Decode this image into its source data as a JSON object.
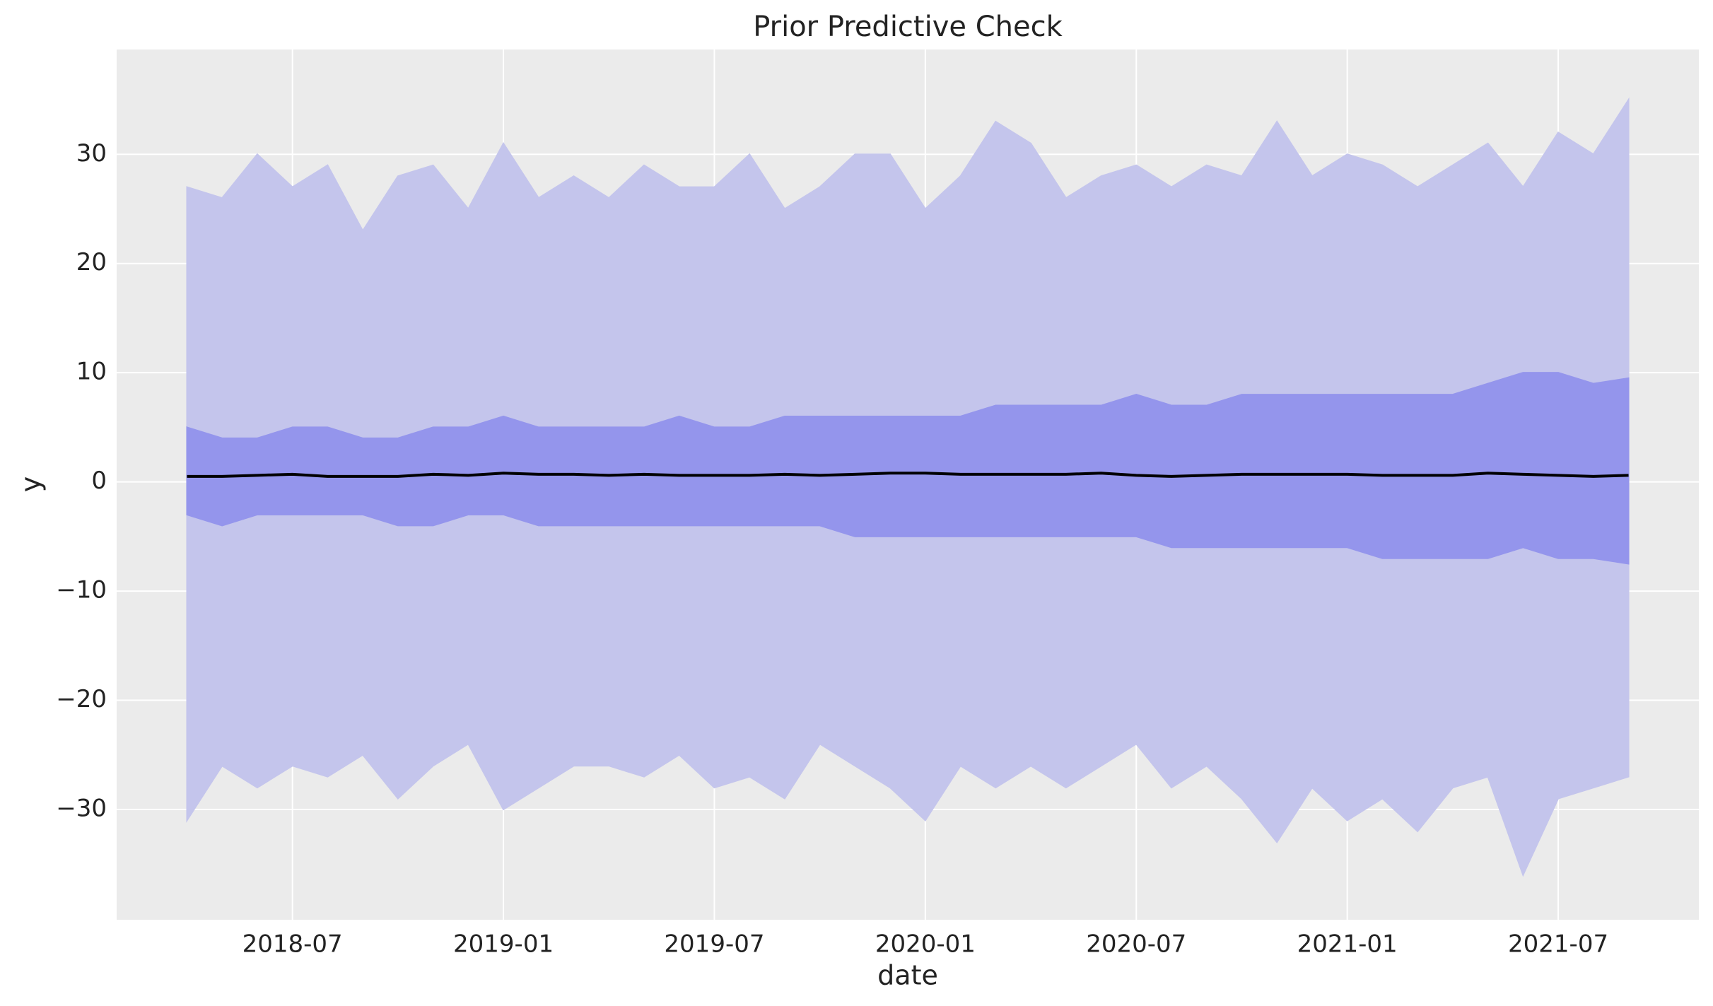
{
  "chart_data": {
    "type": "band-line",
    "title": "Prior Predictive Check",
    "xlabel": "date",
    "ylabel": "y",
    "x": [
      "2018-04",
      "2018-05",
      "2018-06",
      "2018-07",
      "2018-08",
      "2018-09",
      "2018-10",
      "2018-11",
      "2018-12",
      "2019-01",
      "2019-02",
      "2019-03",
      "2019-04",
      "2019-05",
      "2019-06",
      "2019-07",
      "2019-08",
      "2019-09",
      "2019-10",
      "2019-11",
      "2019-12",
      "2020-01",
      "2020-02",
      "2020-03",
      "2020-04",
      "2020-05",
      "2020-06",
      "2020-07",
      "2020-08",
      "2020-09",
      "2020-10",
      "2020-11",
      "2020-12",
      "2021-01",
      "2021-02",
      "2021-03",
      "2021-04",
      "2021-05",
      "2021-06",
      "2021-07",
      "2021-08",
      "2021-09"
    ],
    "bands": [
      {
        "color": "#c4c5ec",
        "upper": [
          27,
          26,
          30,
          27,
          29,
          23,
          28,
          29,
          25,
          31,
          26,
          28,
          26,
          29,
          27,
          27,
          30,
          25,
          27,
          30,
          30,
          25,
          28,
          33,
          31,
          26,
          28,
          29,
          27,
          29,
          28,
          33,
          28,
          30,
          29,
          27,
          29,
          31,
          27,
          32,
          30,
          35
        ],
        "lower": [
          -31,
          -26,
          -28,
          -26,
          -27,
          -25,
          -29,
          -26,
          -24,
          -30,
          -28,
          -26,
          -26,
          -27,
          -25,
          -28,
          -27,
          -29,
          -24,
          -26,
          -28,
          -31,
          -26,
          -28,
          -26,
          -28,
          -26,
          -24,
          -28,
          -26,
          -29,
          -33,
          -28,
          -31,
          -29,
          -32,
          -28,
          -27,
          -36,
          -29,
          -28,
          -27
        ]
      },
      {
        "color": "#9495ec",
        "upper": [
          5,
          4,
          4,
          5,
          5,
          4,
          4,
          5,
          5,
          6,
          5,
          5,
          5,
          5,
          6,
          5,
          5,
          6,
          6,
          6,
          6,
          6,
          6,
          7,
          7,
          7,
          7,
          8,
          7,
          7,
          8,
          8,
          8,
          8,
          8,
          8,
          8,
          9,
          10,
          10,
          9,
          9.5
        ],
        "lower": [
          -3,
          -4,
          -3,
          -3,
          -3,
          -3,
          -4,
          -4,
          -3,
          -3,
          -4,
          -4,
          -4,
          -4,
          -4,
          -4,
          -4,
          -4,
          -4,
          -5,
          -5,
          -5,
          -5,
          -5,
          -5,
          -5,
          -5,
          -5,
          -6,
          -6,
          -6,
          -6,
          -6,
          -6,
          -7,
          -7,
          -7,
          -7,
          -6,
          -7,
          -7,
          -7.5
        ]
      }
    ],
    "line": {
      "color": "#000000",
      "values": [
        0.5,
        0.5,
        0.6,
        0.7,
        0.5,
        0.5,
        0.5,
        0.7,
        0.6,
        0.8,
        0.7,
        0.7,
        0.6,
        0.7,
        0.6,
        0.6,
        0.6,
        0.7,
        0.6,
        0.7,
        0.8,
        0.8,
        0.7,
        0.7,
        0.7,
        0.7,
        0.8,
        0.6,
        0.5,
        0.6,
        0.7,
        0.7,
        0.7,
        0.7,
        0.6,
        0.6,
        0.6,
        0.8,
        0.7,
        0.6,
        0.5,
        0.6
      ]
    },
    "xlim": [
      "2018-02",
      "2021-11"
    ],
    "xticks": [
      "2018-07",
      "2019-01",
      "2019-07",
      "2020-01",
      "2020-07",
      "2021-01",
      "2021-07"
    ],
    "ylim": [
      -40.1,
      39.6
    ],
    "yticks": [
      {
        "value": -30,
        "label": "−30"
      },
      {
        "value": -20,
        "label": "−20"
      },
      {
        "value": -10,
        "label": "−10"
      },
      0,
      10,
      20,
      30
    ],
    "grid": true
  }
}
